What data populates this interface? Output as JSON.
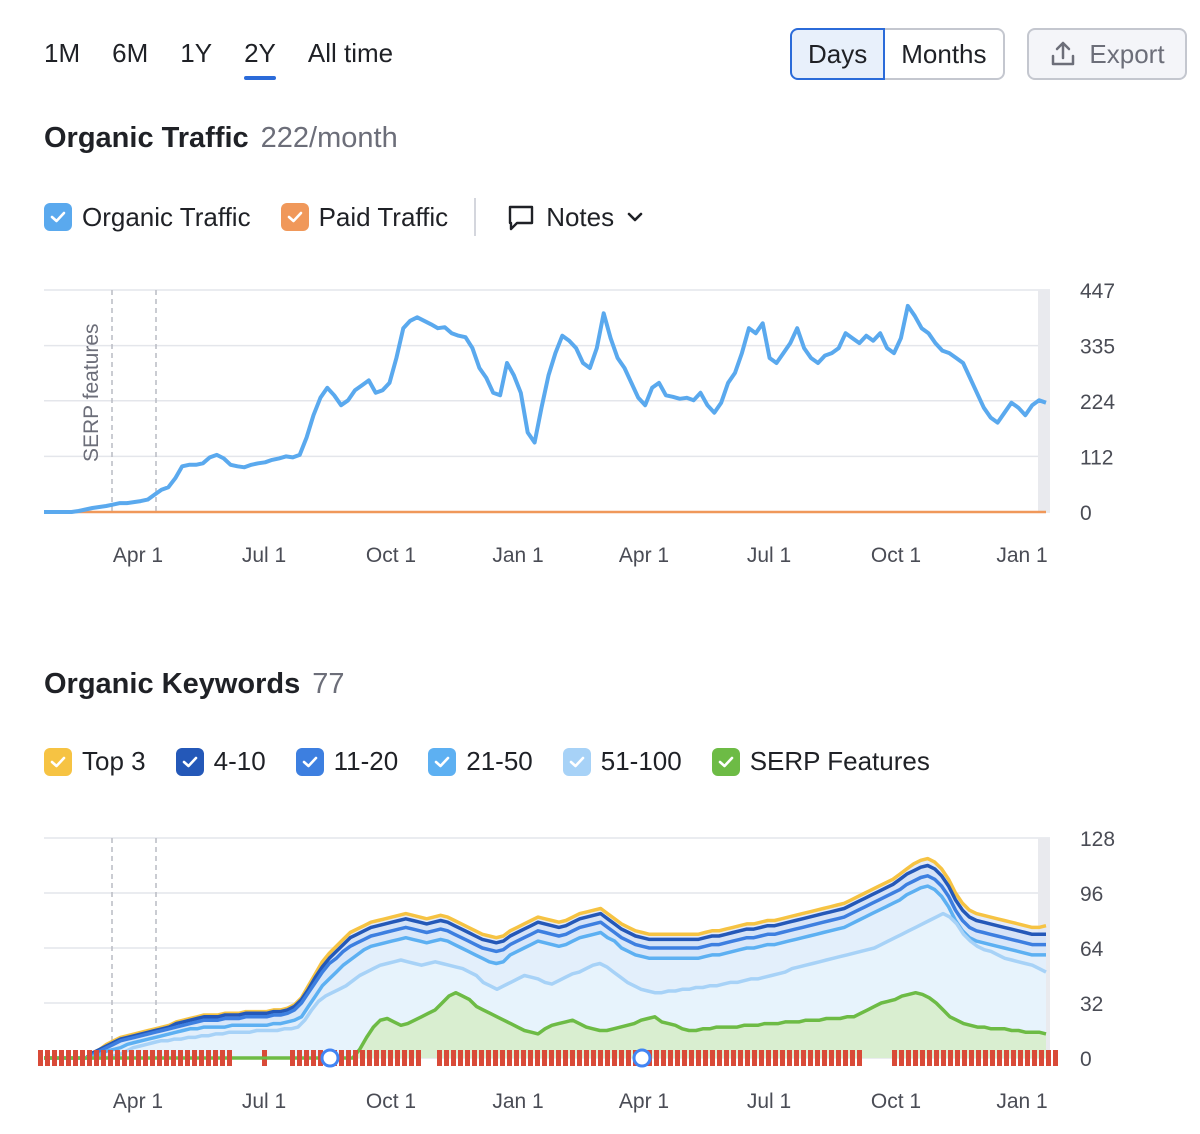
{
  "range_tabs": [
    "1M",
    "6M",
    "1Y",
    "2Y",
    "All time"
  ],
  "range_active": "2Y",
  "granularity": {
    "days": "Days",
    "months": "Months",
    "active": "Days"
  },
  "export_label": "Export",
  "traffic": {
    "title": "Organic Traffic",
    "metric": "222/month",
    "legend": [
      {
        "label": "Organic Traffic",
        "color": "#5aa9ee",
        "checked": true
      },
      {
        "label": "Paid Traffic",
        "color": "#f0985a",
        "checked": true
      }
    ],
    "notes_label": "Notes"
  },
  "keywords": {
    "title": "Organic Keywords",
    "metric": "77",
    "legend": [
      {
        "label": "Top 3",
        "color": "#f6c343",
        "checked": true
      },
      {
        "label": "4-10",
        "color": "#2458b8",
        "checked": true
      },
      {
        "label": "11-20",
        "color": "#3d7fe0",
        "checked": true
      },
      {
        "label": "21-50",
        "color": "#5db0f2",
        "checked": true
      },
      {
        "label": "51-100",
        "color": "#a7d2f7",
        "checked": true
      },
      {
        "label": "SERP Features",
        "color": "#6dbb45",
        "checked": true
      }
    ]
  },
  "chart_data": [
    {
      "type": "line",
      "x_ticks": [
        "Apr 1",
        "Jul 1",
        "Oct 1",
        "Jan 1",
        "Apr 1",
        "Jul 1",
        "Oct 1",
        "Jan 1"
      ],
      "y_ticks": [
        0,
        112,
        224,
        335,
        447
      ],
      "ylim": [
        0,
        447
      ],
      "annotation": "SERP features",
      "grid": true,
      "series": [
        {
          "name": "Organic Traffic",
          "color": "#5aa9ee",
          "values": [
            0,
            0,
            0,
            0,
            0,
            2,
            5,
            8,
            10,
            12,
            15,
            18,
            18,
            20,
            22,
            25,
            35,
            45,
            50,
            68,
            92,
            95,
            95,
            98,
            110,
            115,
            108,
            95,
            92,
            90,
            95,
            98,
            100,
            105,
            108,
            112,
            110,
            115,
            150,
            195,
            230,
            250,
            235,
            215,
            225,
            245,
            255,
            265,
            240,
            245,
            260,
            310,
            370,
            385,
            392,
            385,
            378,
            370,
            372,
            360,
            355,
            352,
            330,
            290,
            270,
            240,
            235,
            300,
            275,
            240,
            160,
            140,
            210,
            275,
            320,
            355,
            345,
            330,
            300,
            290,
            330,
            400,
            350,
            310,
            290,
            260,
            230,
            215,
            250,
            260,
            235,
            232,
            228,
            230,
            225,
            240,
            215,
            200,
            220,
            260,
            280,
            320,
            370,
            360,
            380,
            310,
            300,
            320,
            340,
            370,
            330,
            310,
            300,
            315,
            320,
            330,
            360,
            350,
            340,
            355,
            345,
            360,
            330,
            320,
            350,
            415,
            395,
            370,
            360,
            340,
            325,
            320,
            310,
            300,
            270,
            240,
            210,
            190,
            180,
            200,
            220,
            210,
            195,
            215,
            225,
            220
          ]
        },
        {
          "name": "Paid Traffic",
          "color": "#f0985a",
          "values": [
            0,
            0
          ]
        }
      ]
    },
    {
      "type": "area",
      "x_ticks": [
        "Apr 1",
        "Jul 1",
        "Oct 1",
        "Jan 1",
        "Apr 1",
        "Jul 1",
        "Oct 1",
        "Jan 1"
      ],
      "y_ticks": [
        0,
        32,
        64,
        96,
        128
      ],
      "ylim": [
        0,
        128
      ],
      "grid": true,
      "series": [
        {
          "name": "SERP Features",
          "color": "#6dbb45",
          "values": [
            0,
            0,
            0,
            0,
            0,
            0,
            0,
            0,
            0,
            0,
            0,
            0,
            0,
            0,
            0,
            0,
            0,
            0,
            0,
            0,
            0,
            0,
            0,
            0,
            0,
            0,
            0,
            0,
            0,
            0,
            0,
            0,
            0,
            0,
            0,
            0,
            0,
            0,
            0,
            0,
            0,
            0,
            0,
            0,
            0,
            0,
            5,
            12,
            18,
            22,
            23,
            21,
            19,
            20,
            22,
            24,
            26,
            28,
            32,
            36,
            38,
            36,
            34,
            30,
            28,
            26,
            24,
            22,
            20,
            18,
            16,
            15,
            14,
            17,
            19,
            20,
            21,
            22,
            20,
            18,
            17,
            16,
            16,
            17,
            18,
            19,
            20,
            22,
            23,
            24,
            21,
            20,
            19,
            17,
            16,
            16,
            17,
            17,
            18,
            18,
            18,
            18,
            19,
            19,
            19,
            20,
            20,
            20,
            21,
            21,
            21,
            22,
            22,
            22,
            23,
            23,
            23,
            24,
            24,
            26,
            28,
            30,
            32,
            33,
            34,
            36,
            37,
            38,
            37,
            35,
            32,
            28,
            24,
            22,
            20,
            19,
            18,
            18,
            17,
            17,
            17,
            16,
            16,
            15,
            15,
            15,
            14
          ]
        },
        {
          "name": "51-100",
          "color": "#a7d2f7",
          "values": [
            0,
            0,
            0,
            0,
            0,
            0,
            0,
            0,
            0,
            0,
            1,
            2,
            4,
            6,
            7,
            8,
            9,
            10,
            10,
            11,
            11,
            12,
            12,
            13,
            13,
            14,
            14,
            15,
            15,
            15,
            15,
            16,
            16,
            16,
            16,
            17,
            17,
            18,
            22,
            28,
            33,
            36,
            38,
            40,
            42,
            45,
            48,
            50,
            52,
            54,
            55,
            56,
            57,
            56,
            55,
            54,
            55,
            56,
            55,
            54,
            53,
            52,
            50,
            48,
            44,
            42,
            40,
            42,
            44,
            46,
            48,
            47,
            46,
            44,
            43,
            45,
            47,
            49,
            50,
            52,
            54,
            55,
            53,
            50,
            47,
            44,
            42,
            40,
            39,
            38,
            38,
            39,
            39,
            40,
            40,
            41,
            41,
            42,
            42,
            43,
            44,
            44,
            45,
            46,
            46,
            47,
            48,
            49,
            50,
            52,
            53,
            54,
            55,
            56,
            57,
            58,
            59,
            60,
            61,
            62,
            63,
            64,
            66,
            68,
            70,
            72,
            74,
            76,
            78,
            80,
            82,
            84,
            82,
            78,
            72,
            68,
            65,
            63,
            62,
            60,
            58,
            57,
            56,
            55,
            54,
            52,
            50
          ]
        },
        {
          "name": "21-50",
          "color": "#5db0f2",
          "values": [
            0,
            0,
            0,
            0,
            0,
            0,
            0,
            1,
            2,
            4,
            5,
            6,
            8,
            9,
            10,
            11,
            12,
            13,
            14,
            15,
            16,
            17,
            17,
            18,
            18,
            18,
            18,
            19,
            19,
            19,
            19,
            19,
            19,
            20,
            20,
            21,
            22,
            24,
            30,
            36,
            42,
            46,
            50,
            54,
            57,
            60,
            63,
            65,
            66,
            67,
            68,
            69,
            70,
            69,
            68,
            67,
            68,
            69,
            68,
            66,
            64,
            62,
            60,
            58,
            56,
            55,
            56,
            60,
            62,
            64,
            66,
            68,
            67,
            66,
            65,
            66,
            68,
            70,
            71,
            72,
            73,
            70,
            68,
            64,
            62,
            60,
            59,
            58,
            58,
            58,
            58,
            58,
            58,
            58,
            58,
            59,
            60,
            60,
            61,
            62,
            63,
            64,
            64,
            65,
            66,
            66,
            67,
            68,
            69,
            70,
            71,
            72,
            73,
            74,
            75,
            76,
            78,
            80,
            82,
            84,
            86,
            88,
            90,
            92,
            95,
            97,
            99,
            100,
            98,
            94,
            88,
            80,
            74,
            70,
            68,
            67,
            66,
            65,
            64,
            63,
            62,
            61,
            60,
            60,
            60
          ]
        },
        {
          "name": "11-20",
          "color": "#3d7fe0",
          "values": [
            0,
            0,
            0,
            0,
            0,
            0,
            0,
            2,
            4,
            6,
            8,
            10,
            11,
            12,
            13,
            14,
            15,
            16,
            17,
            18,
            19,
            20,
            21,
            22,
            22,
            22,
            23,
            23,
            23,
            24,
            24,
            24,
            24,
            25,
            25,
            26,
            28,
            32,
            38,
            44,
            50,
            55,
            58,
            62,
            65,
            67,
            69,
            71,
            72,
            73,
            74,
            75,
            76,
            75,
            74,
            73,
            74,
            75,
            74,
            72,
            70,
            68,
            66,
            64,
            63,
            62,
            63,
            66,
            68,
            70,
            72,
            74,
            73,
            72,
            71,
            72,
            74,
            76,
            77,
            78,
            79,
            76,
            73,
            70,
            68,
            66,
            65,
            64,
            64,
            64,
            64,
            64,
            64,
            64,
            64,
            65,
            66,
            66,
            67,
            68,
            69,
            70,
            70,
            71,
            72,
            72,
            73,
            74,
            75,
            76,
            77,
            78,
            79,
            80,
            81,
            82,
            84,
            86,
            88,
            90,
            92,
            94,
            96,
            98,
            101,
            103,
            105,
            106,
            104,
            100,
            94,
            86,
            80,
            76,
            74,
            73,
            72,
            71,
            70,
            69,
            68,
            67,
            66,
            66,
            66
          ]
        },
        {
          "name": "4-10",
          "color": "#2458b8",
          "values": [
            0,
            0,
            0,
            0,
            0,
            0,
            0,
            3,
            5,
            7,
            9,
            11,
            12,
            13,
            14,
            15,
            16,
            17,
            18,
            20,
            21,
            22,
            23,
            24,
            24,
            24,
            25,
            25,
            25,
            26,
            26,
            26,
            26,
            27,
            27,
            28,
            30,
            34,
            40,
            47,
            53,
            58,
            62,
            66,
            70,
            72,
            74,
            76,
            77,
            78,
            79,
            80,
            81,
            80,
            79,
            78,
            79,
            80,
            79,
            77,
            75,
            73,
            71,
            69,
            68,
            67,
            68,
            71,
            73,
            75,
            77,
            79,
            78,
            77,
            76,
            77,
            79,
            81,
            82,
            83,
            84,
            81,
            78,
            75,
            73,
            71,
            70,
            69,
            69,
            69,
            69,
            69,
            69,
            69,
            69,
            70,
            71,
            71,
            72,
            73,
            74,
            75,
            75,
            76,
            77,
            77,
            78,
            79,
            80,
            81,
            82,
            83,
            84,
            85,
            86,
            87,
            89,
            91,
            93,
            95,
            97,
            99,
            101,
            104,
            107,
            109,
            111,
            112,
            110,
            106,
            100,
            92,
            86,
            82,
            80,
            79,
            78,
            77,
            76,
            75,
            74,
            73,
            72,
            72,
            72
          ]
        },
        {
          "name": "Top 3",
          "color": "#f6c343",
          "values": [
            0,
            0,
            0,
            0,
            0,
            0,
            0,
            3,
            5,
            8,
            10,
            12,
            13,
            14,
            15,
            16,
            17,
            18,
            19,
            21,
            22,
            23,
            24,
            25,
            25,
            25,
            26,
            26,
            26,
            27,
            27,
            27,
            27,
            28,
            28,
            29,
            31,
            35,
            42,
            49,
            56,
            61,
            65,
            69,
            73,
            75,
            77,
            79,
            80,
            81,
            82,
            83,
            84,
            83,
            82,
            81,
            82,
            83,
            82,
            80,
            78,
            76,
            74,
            72,
            71,
            70,
            71,
            74,
            76,
            78,
            80,
            82,
            81,
            80,
            79,
            80,
            82,
            84,
            85,
            86,
            87,
            84,
            81,
            78,
            76,
            74,
            73,
            72,
            72,
            72,
            72,
            72,
            72,
            72,
            72,
            73,
            74,
            74,
            75,
            76,
            77,
            78,
            78,
            79,
            80,
            80,
            81,
            82,
            83,
            84,
            85,
            86,
            87,
            88,
            89,
            90,
            92,
            94,
            96,
            98,
            100,
            102,
            104,
            107,
            110,
            113,
            115,
            116,
            114,
            110,
            104,
            96,
            90,
            86,
            84,
            83,
            82,
            81,
            80,
            79,
            78,
            77,
            76,
            76,
            77
          ]
        }
      ]
    }
  ]
}
